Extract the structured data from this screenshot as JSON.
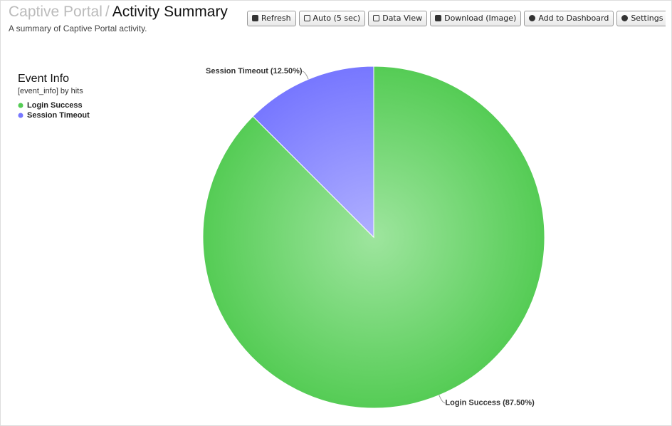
{
  "header": {
    "section": "Captive Portal",
    "separator": "/",
    "title": "Activity Summary",
    "description": "A summary of Captive Portal activity.",
    "buttons": [
      "Refresh",
      "Auto (5 sec)",
      "Data View",
      "Download (Image)",
      "Add to Dashboard",
      "Settings"
    ]
  },
  "chart_data": {
    "type": "pie",
    "title": "Event Info",
    "subtitle": "[event_info] by hits",
    "categories": [
      "Login Success",
      "Session Timeout"
    ],
    "values": [
      87.5,
      12.5
    ],
    "value_labels": [
      "Login Success (87.50%)",
      "Session Timeout (12.50%)"
    ],
    "colors": [
      "#55cc55",
      "#7777ff"
    ]
  }
}
